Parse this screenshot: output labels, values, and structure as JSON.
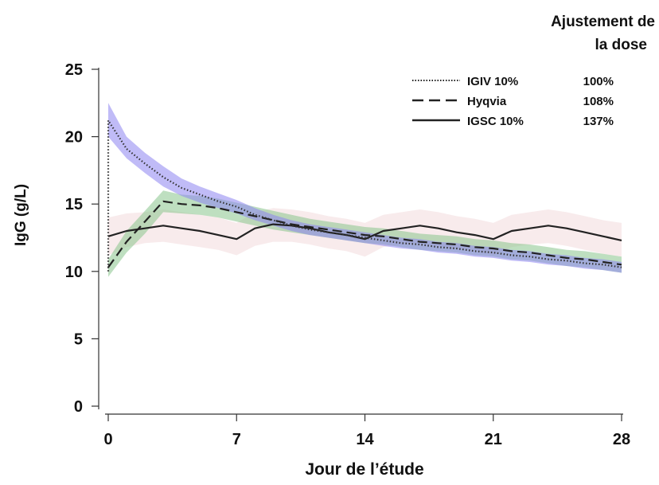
{
  "chart_data": {
    "type": "line",
    "title": "",
    "xlabel": "Jour de l’étude",
    "ylabel": "IgG (g/L)",
    "xlim": [
      0,
      28
    ],
    "ylim": [
      0,
      25
    ],
    "x_ticks": [
      0,
      7,
      14,
      21,
      28
    ],
    "y_ticks": [
      0,
      5,
      10,
      15,
      20,
      25
    ],
    "grid": false,
    "legend": {
      "placement": "top-right",
      "header_line1": "Ajustement de",
      "header_line2": "la dose",
      "entries": [
        {
          "label": "IGIV 10%",
          "dose": "100%",
          "style": "dotted"
        },
        {
          "label": "Hyqvia",
          "dose": "108%",
          "style": "dashed"
        },
        {
          "label": "IGSC 10%",
          "dose": "137%",
          "style": "solid"
        }
      ]
    },
    "series": [
      {
        "name": "IGIV 10%",
        "line_style": "dotted",
        "line_color": "#333333",
        "band_color": "#8c84f0",
        "x": [
          0,
          0,
          1,
          2,
          3,
          4,
          5,
          6,
          7,
          8,
          9,
          10,
          11,
          12,
          13,
          14,
          15,
          16,
          17,
          18,
          19,
          20,
          21,
          22,
          23,
          24,
          25,
          26,
          27,
          28
        ],
        "y": [
          10.0,
          21.2,
          19.1,
          18.0,
          17.0,
          16.2,
          15.7,
          15.2,
          14.8,
          14.2,
          13.8,
          13.4,
          13.1,
          12.9,
          12.7,
          12.5,
          12.3,
          12.1,
          12.0,
          11.8,
          11.7,
          11.5,
          11.4,
          11.2,
          11.1,
          10.9,
          10.8,
          10.6,
          10.5,
          10.3
        ],
        "band_x": [
          0,
          1,
          2,
          3,
          4,
          5,
          6,
          7,
          8,
          9,
          10,
          11,
          12,
          13,
          14,
          15,
          16,
          17,
          18,
          19,
          20,
          21,
          22,
          23,
          24,
          25,
          26,
          27,
          28
        ],
        "band_lower": [
          20.0,
          18.4,
          17.3,
          16.3,
          15.6,
          15.1,
          14.7,
          14.3,
          13.8,
          13.4,
          13.0,
          12.7,
          12.5,
          12.3,
          12.1,
          11.9,
          11.7,
          11.6,
          11.4,
          11.3,
          11.1,
          11.0,
          10.8,
          10.7,
          10.5,
          10.4,
          10.2,
          10.1,
          9.9
        ],
        "band_upper": [
          22.5,
          20.0,
          18.8,
          17.8,
          16.9,
          16.3,
          15.8,
          15.3,
          14.7,
          14.2,
          13.8,
          13.5,
          13.3,
          13.1,
          12.9,
          12.7,
          12.5,
          12.4,
          12.2,
          12.1,
          11.9,
          11.8,
          11.6,
          11.5,
          11.3,
          11.2,
          11.0,
          10.9,
          10.7
        ]
      },
      {
        "name": "Hyqvia",
        "line_style": "dashed",
        "line_color": "#222222",
        "band_color": "#88c48c",
        "x": [
          0,
          1,
          2,
          3,
          4,
          5,
          6,
          7,
          8,
          9,
          10,
          11,
          12,
          13,
          14,
          15,
          16,
          17,
          18,
          19,
          20,
          21,
          22,
          23,
          24,
          25,
          26,
          27,
          28
        ],
        "y": [
          10.3,
          12.2,
          13.7,
          15.2,
          15.0,
          14.9,
          14.7,
          14.4,
          14.1,
          13.8,
          13.5,
          13.3,
          13.1,
          12.9,
          12.7,
          12.6,
          12.4,
          12.2,
          12.1,
          12.0,
          11.8,
          11.7,
          11.5,
          11.4,
          11.2,
          11.0,
          10.9,
          10.7,
          10.5
        ],
        "band_x": [
          0,
          1,
          2,
          3,
          4,
          5,
          6,
          7,
          8,
          9,
          10,
          11,
          12,
          13,
          14,
          15,
          16,
          17,
          18,
          19,
          20,
          21,
          22,
          23,
          24,
          25,
          26,
          27,
          28
        ],
        "band_lower": [
          9.6,
          11.4,
          12.8,
          14.4,
          14.3,
          14.2,
          14.0,
          13.7,
          13.4,
          13.1,
          12.9,
          12.7,
          12.5,
          12.3,
          12.1,
          12.0,
          11.8,
          11.6,
          11.5,
          11.4,
          11.2,
          11.1,
          10.9,
          10.8,
          10.6,
          10.4,
          10.3,
          10.1,
          9.9
        ],
        "band_upper": [
          10.9,
          13.0,
          14.5,
          16.0,
          15.7,
          15.6,
          15.4,
          15.1,
          14.8,
          14.5,
          14.2,
          13.9,
          13.7,
          13.5,
          13.3,
          13.2,
          13.0,
          12.8,
          12.7,
          12.6,
          12.4,
          12.3,
          12.1,
          12.0,
          11.8,
          11.6,
          11.5,
          11.3,
          11.1
        ]
      },
      {
        "name": "IGSC 10%",
        "line_style": "solid",
        "line_color": "#222222",
        "band_color": "#efd2d4",
        "x": [
          0,
          1,
          2,
          3,
          4,
          5,
          6,
          7,
          8,
          9,
          10,
          11,
          12,
          13,
          14,
          15,
          16,
          17,
          18,
          19,
          20,
          21,
          22,
          23,
          24,
          25,
          26,
          27,
          28
        ],
        "y": [
          12.6,
          13.0,
          13.2,
          13.4,
          13.2,
          13.0,
          12.7,
          12.4,
          13.2,
          13.5,
          13.4,
          13.2,
          12.9,
          12.7,
          12.4,
          13.0,
          13.2,
          13.4,
          13.2,
          12.9,
          12.7,
          12.4,
          13.0,
          13.2,
          13.4,
          13.2,
          12.9,
          12.6,
          12.3
        ],
        "band_x": [
          0,
          1,
          2,
          3,
          4,
          5,
          6,
          7,
          8,
          9,
          10,
          11,
          12,
          13,
          14,
          15,
          16,
          17,
          18,
          19,
          20,
          21,
          22,
          23,
          24,
          25,
          26,
          27,
          28
        ],
        "band_lower": [
          11.2,
          11.8,
          12.1,
          12.2,
          12.0,
          11.8,
          11.6,
          11.2,
          11.9,
          12.2,
          12.2,
          12.0,
          11.7,
          11.5,
          11.1,
          11.8,
          12.0,
          12.1,
          11.9,
          11.6,
          11.5,
          11.2,
          11.8,
          12.0,
          12.1,
          11.9,
          11.6,
          11.3,
          11.1
        ],
        "band_upper": [
          14.0,
          14.3,
          14.4,
          14.6,
          14.4,
          14.2,
          14.0,
          13.6,
          14.4,
          14.7,
          14.6,
          14.4,
          14.1,
          13.9,
          13.6,
          14.2,
          14.4,
          14.6,
          14.4,
          14.1,
          13.9,
          13.6,
          14.2,
          14.4,
          14.6,
          14.4,
          14.1,
          13.8,
          13.6
        ]
      }
    ]
  }
}
